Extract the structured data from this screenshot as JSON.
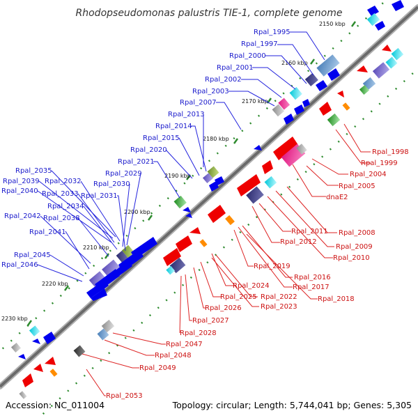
{
  "title": "Rhodopseudomonas palustris TIE-1, complete genome",
  "footer": {
    "accession": "Accession: NC_011004",
    "summary": "Topology: circular; Length: 5,744,041 bp; Genes: 5,305"
  },
  "ticks": [
    "2150 kbp",
    "2160 kbp",
    "2170 kbp",
    "2180 kbp",
    "2190 kbp",
    "2200 kbp",
    "2210 kbp",
    "2220 kbp",
    "2230 kbp"
  ],
  "colors": {
    "forward_label": "#1a1acc",
    "reverse_label": "#cc1111",
    "backbone": "#707070",
    "tick": "#228b22"
  },
  "forward_labels": [
    "Rpal_1995",
    "Rpal_1997",
    "Rpal_2000",
    "Rpal_2001",
    "Rpal_2002",
    "Rpal_2003",
    "Rpal_2007",
    "Rpal_2013",
    "Rpal_2014",
    "Rpal_2015",
    "Rpal_2020",
    "Rpal_2021",
    "Rpal_2029",
    "Rpal_2030",
    "Rpal_2031",
    "Rpal_2032",
    "Rpal_2033",
    "Rpal_2034",
    "Rpal_2035",
    "Rpal_2039",
    "Rpal_2040",
    "Rpal_2038",
    "Rpal_2042",
    "Rpal_2041",
    "Rpal_2045",
    "Rpal_2046"
  ],
  "reverse_labels": [
    "Rpal_1998",
    "Rpal_1999",
    "Rpal_2004",
    "Rpal_2005",
    "dnaE2",
    "Rpal_2008",
    "Rpal_2009",
    "Rpal_2010",
    "Rpal_2011",
    "Rpal_2012",
    "Rpal_2019",
    "Rpal_2016",
    "Rpal_2017",
    "Rpal_2018",
    "Rpal_2024",
    "Rpal_2022",
    "Rpal_2023",
    "Rpal_2025",
    "Rpal_2026",
    "Rpal_2027",
    "Rpal_2028",
    "Rpal_2047",
    "Rpal_2048",
    "Rpal_2049",
    "Rpal_2053"
  ]
}
